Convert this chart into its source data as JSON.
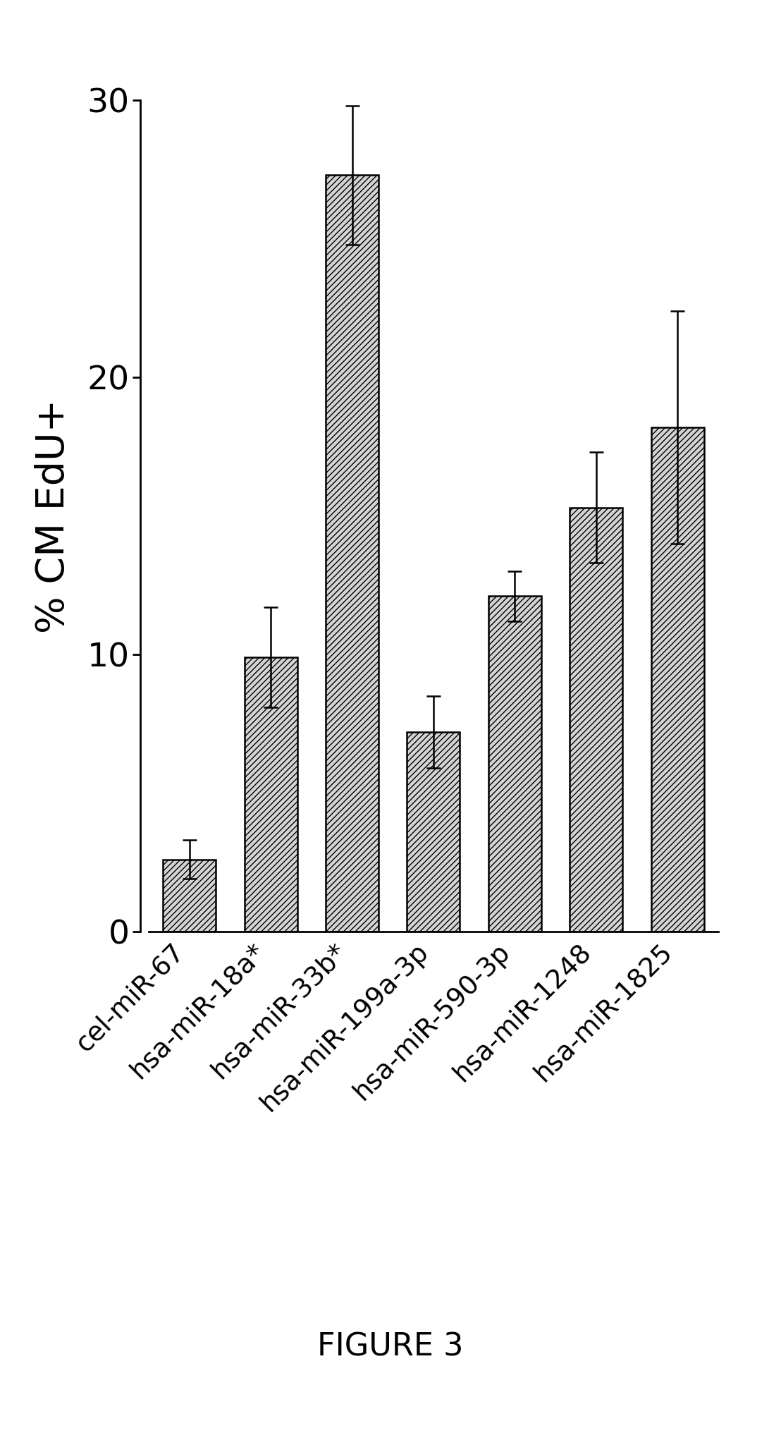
{
  "categories": [
    "cel-miR-67",
    "hsa-miR-18a*",
    "hsa-miR-33b*",
    "hsa-miR-199a-3p",
    "hsa-miR-590-3p",
    "hsa-miR-1248",
    "hsa-miR-1825"
  ],
  "values": [
    2.6,
    9.9,
    27.3,
    7.2,
    12.1,
    15.3,
    18.2
  ],
  "errors": [
    0.7,
    1.8,
    2.5,
    1.3,
    0.9,
    2.0,
    4.2
  ],
  "ylabel": "% CM EdU+",
  "ylim": [
    0,
    30
  ],
  "yticks": [
    0,
    10,
    20,
    30
  ],
  "figure_label": "FIGURE 3",
  "bar_facecolor": "#d4d4d4",
  "hatch": "////",
  "bar_edgecolor": "#000000",
  "figsize": [
    11.08,
    20.32
  ],
  "dpi": 100
}
